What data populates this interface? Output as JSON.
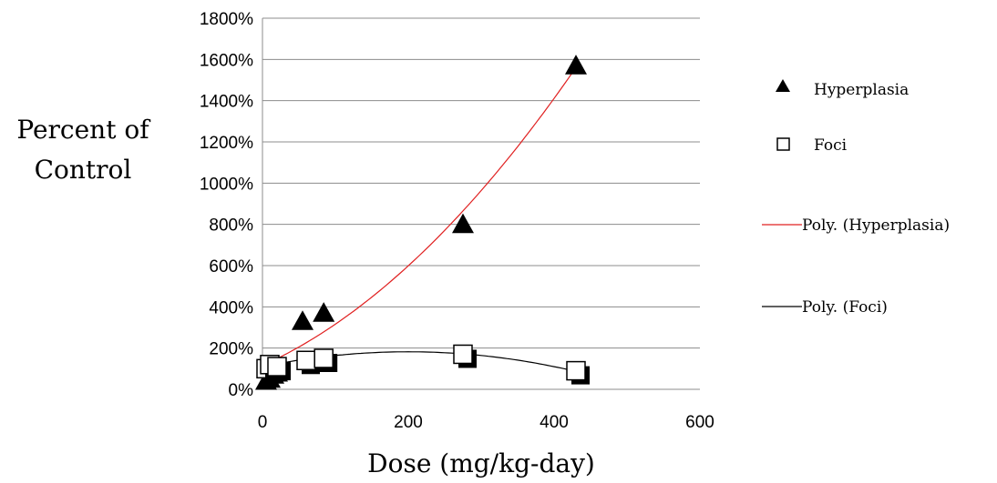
{
  "chart_data": {
    "type": "scatter",
    "xlabel": "Dose (mg/kg-day)",
    "ylabel": [
      "Percent of",
      "Control"
    ],
    "xlim": [
      0,
      600
    ],
    "ylim": [
      0,
      1800
    ],
    "x_ticks": [
      0,
      200,
      400,
      600
    ],
    "y_ticks": [
      0,
      200,
      400,
      600,
      800,
      1000,
      1200,
      1400,
      1600,
      1800
    ],
    "x_tick_labels": [
      "0",
      "200",
      "400",
      "600"
    ],
    "y_tick_labels": [
      "0%",
      "200%",
      "400%",
      "600%",
      "800%",
      "1000%",
      "1200%",
      "1400%",
      "1600%",
      "1800%"
    ],
    "grid": "horizontal",
    "legend_position": "right",
    "series": [
      {
        "name": "Hyperplasia",
        "marker": "filled-triangle",
        "color": "#000000",
        "points": [
          [
            5,
            40
          ],
          [
            10,
            50
          ],
          [
            15,
            70
          ],
          [
            20,
            80
          ],
          [
            55,
            330
          ],
          [
            84,
            370
          ],
          [
            275,
            800
          ],
          [
            430,
            1570
          ]
        ]
      },
      {
        "name": "Foci",
        "marker": "open-square",
        "color": "#000000",
        "points": [
          [
            5,
            100
          ],
          [
            10,
            120
          ],
          [
            20,
            110
          ],
          [
            60,
            140
          ],
          [
            84,
            150
          ],
          [
            275,
            170
          ],
          [
            430,
            90
          ]
        ]
      }
    ],
    "trendlines": [
      {
        "name": "Poly. (Hyperplasia)",
        "color": "#e02020",
        "type": "polynomial",
        "coefficients": [
          115,
          1.6,
          0.0041
        ],
        "x_range": [
          0,
          430
        ]
      },
      {
        "name": "Poly. (Foci)",
        "color": "#000000",
        "type": "polynomial",
        "coefficients": [
          110,
          0.72,
          -0.0018
        ],
        "x_range": [
          0,
          430
        ]
      }
    ]
  }
}
